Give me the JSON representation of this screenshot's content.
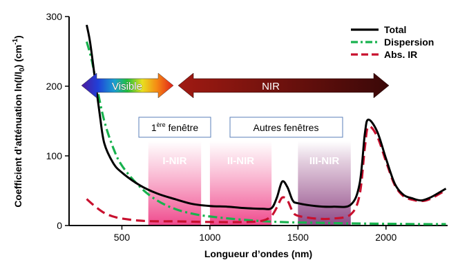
{
  "chart_data": {
    "type": "line",
    "xlabel": "Longueur d’ondes (nm)",
    "ylabel": "Coefficient d’atténuation ln(I/I0) (cm⁻¹)",
    "xlim": [
      200,
      2350
    ],
    "ylim": [
      0,
      300
    ],
    "x_ticks": [
      "500",
      "1000",
      "1500",
      "2000"
    ],
    "y_ticks": [
      "0",
      "100",
      "200",
      "300"
    ],
    "grid": false,
    "legend_position": "top-right",
    "series": [
      {
        "name": "Total",
        "color": "#000000",
        "style": "solid",
        "points": [
          [
            300,
            288
          ],
          [
            320,
            262
          ],
          [
            350,
            205
          ],
          [
            375,
            158
          ],
          [
            400,
            118
          ],
          [
            450,
            90
          ],
          [
            500,
            76
          ],
          [
            600,
            58
          ],
          [
            700,
            46
          ],
          [
            800,
            38
          ],
          [
            900,
            31
          ],
          [
            1000,
            28
          ],
          [
            1100,
            27
          ],
          [
            1200,
            25
          ],
          [
            1300,
            24
          ],
          [
            1350,
            25
          ],
          [
            1380,
            40
          ],
          [
            1410,
            63
          ],
          [
            1440,
            55
          ],
          [
            1470,
            36
          ],
          [
            1500,
            32
          ],
          [
            1600,
            28
          ],
          [
            1700,
            27
          ],
          [
            1800,
            30
          ],
          [
            1850,
            60
          ],
          [
            1880,
            132
          ],
          [
            1900,
            152
          ],
          [
            1950,
            135
          ],
          [
            2000,
            96
          ],
          [
            2050,
            60
          ],
          [
            2100,
            44
          ],
          [
            2150,
            39
          ],
          [
            2200,
            36
          ],
          [
            2250,
            40
          ],
          [
            2300,
            47
          ],
          [
            2340,
            53
          ]
        ]
      },
      {
        "name": "Dispersion",
        "color": "#18b24e",
        "style": "dashdot",
        "points": [
          [
            300,
            264
          ],
          [
            330,
            236
          ],
          [
            360,
            196
          ],
          [
            400,
            150
          ],
          [
            450,
            112
          ],
          [
            500,
            86
          ],
          [
            600,
            56
          ],
          [
            700,
            36
          ],
          [
            800,
            24
          ],
          [
            900,
            17
          ],
          [
            1000,
            13
          ],
          [
            1200,
            8
          ],
          [
            1400,
            5
          ],
          [
            1600,
            4
          ],
          [
            1800,
            3
          ],
          [
            2000,
            2.5
          ],
          [
            2200,
            2
          ],
          [
            2340,
            2
          ]
        ]
      },
      {
        "name": "Abs. IR",
        "color": "#c8102e",
        "style": "dashed",
        "points": [
          [
            300,
            38
          ],
          [
            350,
            27
          ],
          [
            400,
            18
          ],
          [
            450,
            13
          ],
          [
            500,
            10
          ],
          [
            600,
            7
          ],
          [
            700,
            6
          ],
          [
            800,
            6
          ],
          [
            1000,
            5
          ],
          [
            1200,
            5
          ],
          [
            1300,
            7
          ],
          [
            1350,
            14
          ],
          [
            1380,
            26
          ],
          [
            1410,
            40
          ],
          [
            1440,
            36
          ],
          [
            1470,
            20
          ],
          [
            1500,
            14
          ],
          [
            1600,
            10
          ],
          [
            1700,
            10
          ],
          [
            1800,
            16
          ],
          [
            1850,
            44
          ],
          [
            1880,
            112
          ],
          [
            1900,
            142
          ],
          [
            1950,
            128
          ],
          [
            2000,
            92
          ],
          [
            2050,
            58
          ],
          [
            2100,
            42
          ],
          [
            2150,
            37
          ],
          [
            2200,
            35
          ],
          [
            2250,
            38
          ],
          [
            2300,
            45
          ],
          [
            2340,
            51
          ]
        ]
      }
    ],
    "regions": [
      {
        "label": "I-NIR",
        "x_from": 650,
        "x_to": 950,
        "color_top": "#f0508c"
      },
      {
        "label": "II-NIR",
        "x_from": 1000,
        "x_to": 1350,
        "color_top": "#f0508c"
      },
      {
        "label": "III-NIR",
        "x_from": 1500,
        "x_to": 1800,
        "color_top": "#7e2870"
      }
    ],
    "annotations": {
      "visible_arrow": {
        "label": "Visible",
        "x_from": 385,
        "x_to": 790,
        "y": 190
      },
      "nir_arrow": {
        "label": "NIR",
        "x_from": 830,
        "x_to": 1900,
        "y": 190
      },
      "window_first": {
        "prefix": "1",
        "superscript": "ère",
        "suffix": " fenêtre"
      },
      "window_others": {
        "label": "Autres fenêtres"
      }
    }
  }
}
